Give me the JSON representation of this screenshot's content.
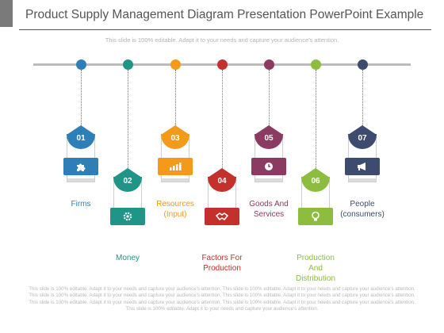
{
  "title": "Product Supply Management Diagram Presentation PowerPoint Example",
  "subtitle": "This slide is 100% editable. Adapt it to your needs and capture your audience's attention.",
  "footer": "This slide is 100% editable. Adapt it to your needs and capture your audience's attention. This slide is 100% editable. Adapt it to your needs and capture your audience's attention. This slide is 100% editable. Adapt it to your needs and capture your audience's attention. This slide is 100% editable. Adapt it to your needs and capture your audience's attention. This slide is 100% editable. Adapt it to your needs and capture your audience's attention. This slide is 100% editable. Adapt it to your needs and capture your audience's attention. This slide is 100% editable. Adapt it to your needs and capture your audience's attention.",
  "steps": [
    {
      "number": "01",
      "label": "Firms",
      "icon": "puzzle-icon",
      "color": "#2e7fb7"
    },
    {
      "number": "02",
      "label": "Money",
      "icon": "gear-icon",
      "color": "#1f9487"
    },
    {
      "number": "03",
      "label": "Resources\n(Input)",
      "icon": "bar-chart-icon",
      "color": "#f39a1a"
    },
    {
      "number": "04",
      "label": "Factors For\nProduction",
      "icon": "handshake-icon",
      "color": "#c4302b"
    },
    {
      "number": "05",
      "label": "Goods And\nServices",
      "icon": "clock-icon",
      "color": "#8b3a62"
    },
    {
      "number": "06",
      "label": "Production\nAnd\nDistribution",
      "icon": "lightbulb-icon",
      "color": "#8dbd3e"
    },
    {
      "number": "07",
      "label": "People\n(consumers)",
      "icon": "megaphone-icon",
      "color": "#3d4c6e"
    }
  ]
}
